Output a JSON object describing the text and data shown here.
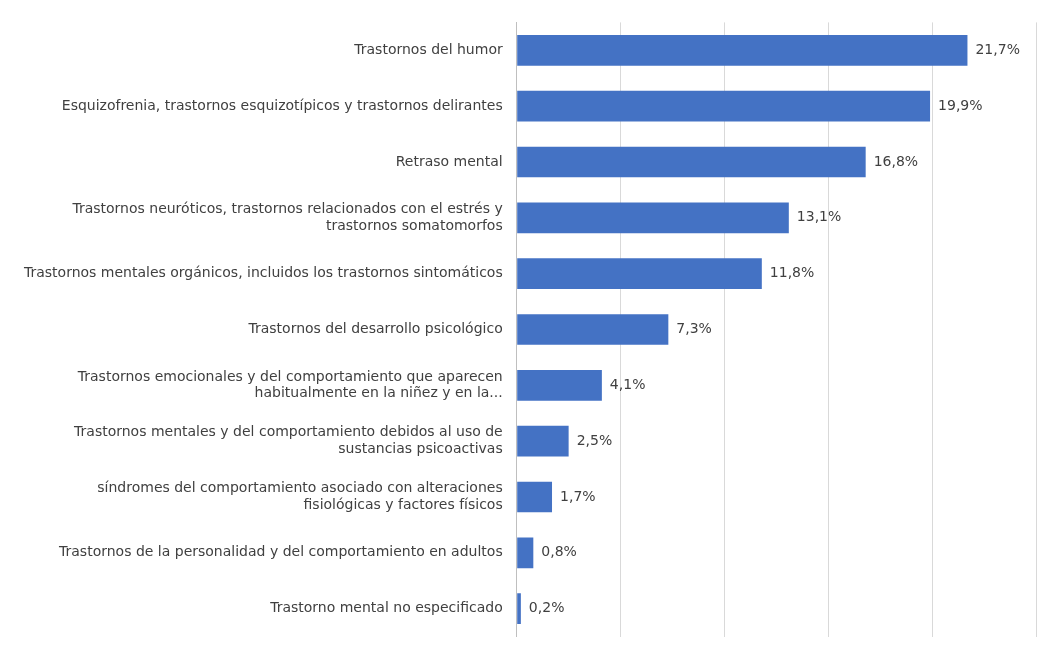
{
  "chart_data": {
    "type": "bar",
    "orientation": "horizontal",
    "categories": [
      "Trastornos del humor",
      "Esquizofrenia, trastornos esquizotípicos y trastornos delirantes",
      "Retraso mental",
      "Trastornos neuróticos, trastornos relacionados con el estrés y trastornos somatomorfos",
      "Trastornos mentales orgánicos, incluidos los trastornos sintomáticos",
      "Trastornos del desarrollo psicológico",
      "Trastornos emocionales y del comportamiento que aparecen habitualmente en la niñez y en la...",
      "Trastornos mentales y del comportamiento debidos al uso de sustancias psicoactivas",
      "síndromes del comportamiento asociado con alteraciones fisiológicas y factores físicos",
      "Trastornos de la personalidad y del comportamiento en adultos",
      "Trastorno mental no especificado"
    ],
    "values": [
      21.7,
      19.9,
      16.8,
      13.1,
      11.8,
      7.3,
      4.1,
      2.5,
      1.7,
      0.8,
      0.2
    ],
    "value_labels": [
      "21,7%",
      "19,9%",
      "16,8%",
      "13,1%",
      "11,8%",
      "7,3%",
      "4,1%",
      "2,5%",
      "1,7%",
      "0,8%",
      "0,2%"
    ],
    "color": "#4472c4",
    "xlim": [
      0,
      25
    ],
    "xticks": [
      {
        "value": 0,
        "label": null
      },
      {
        "value": 5,
        "label": null
      },
      {
        "value": 10,
        "label": null
      },
      {
        "value": 15,
        "label": null
      },
      {
        "value": 20,
        "label": null
      },
      {
        "value": 25,
        "label": null
      }
    ],
    "grid": "x",
    "tick_labels": "y",
    "legend": false
  }
}
